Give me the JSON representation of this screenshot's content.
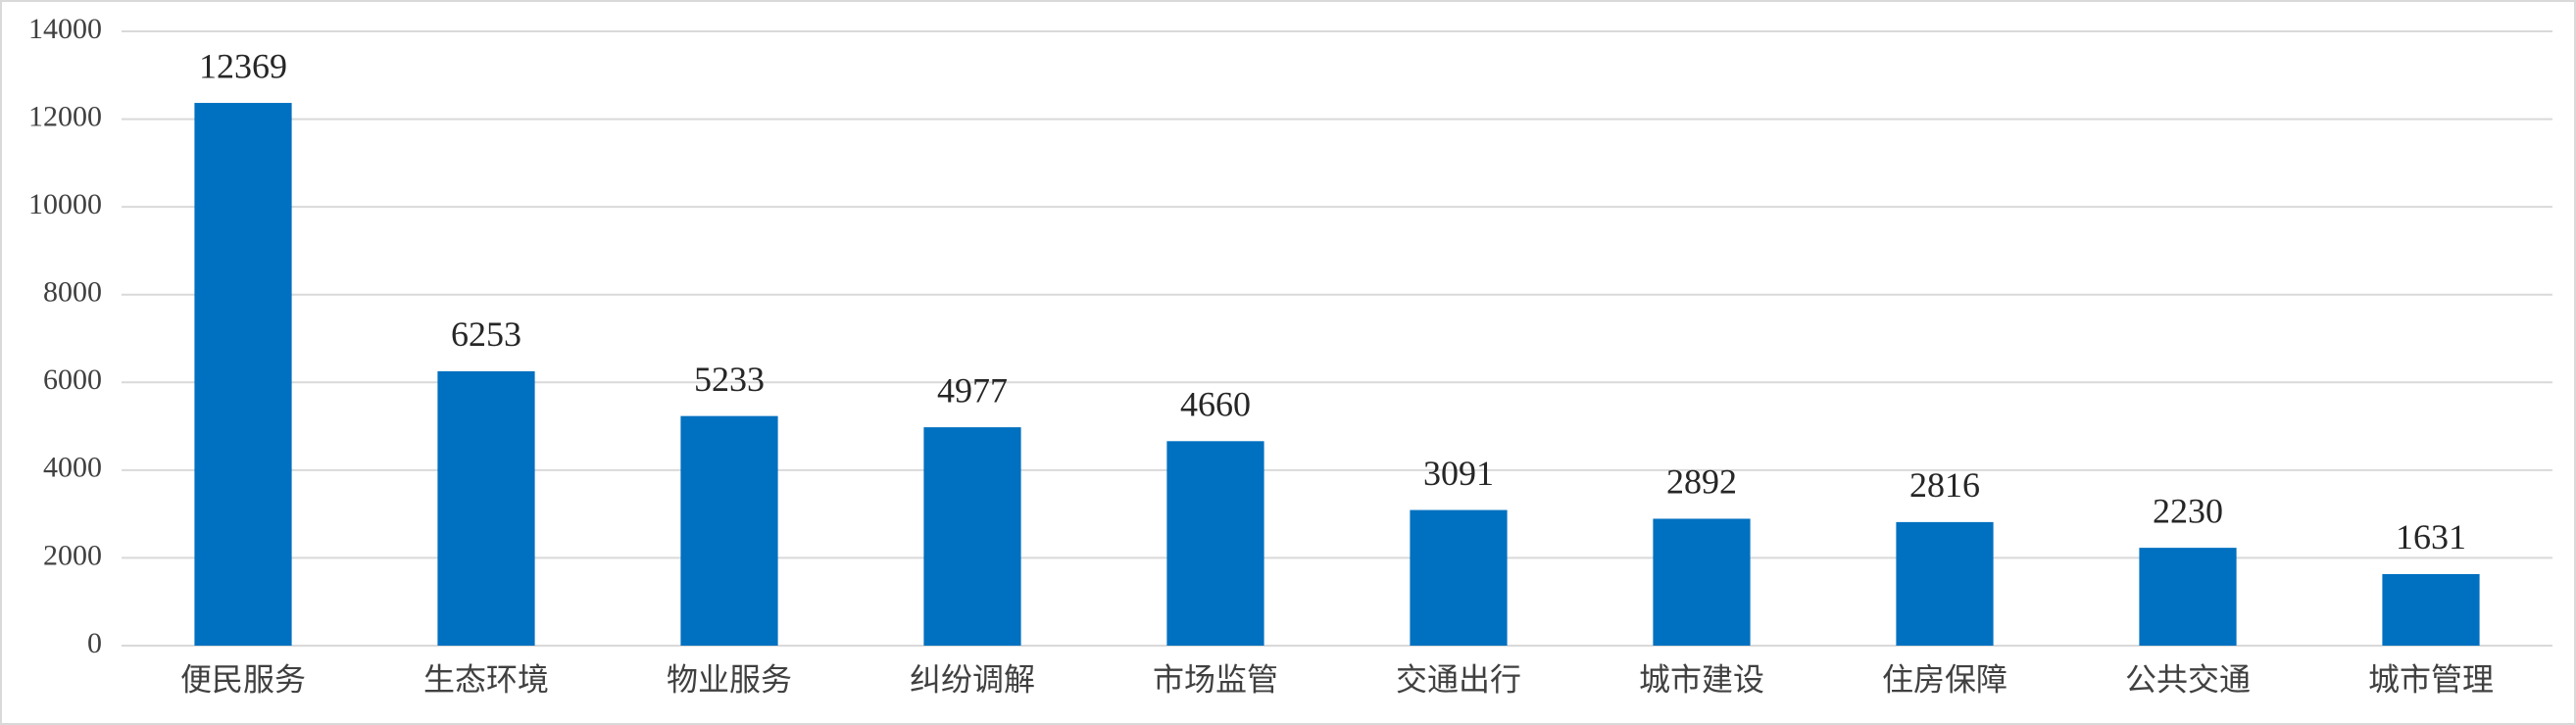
{
  "chart_data": {
    "type": "bar",
    "categories": [
      "便民服务",
      "生态环境",
      "物业服务",
      "纠纷调解",
      "市场监管",
      "交通出行",
      "城市建设",
      "住房保障",
      "公共交通",
      "城市管理"
    ],
    "values": [
      12369,
      6253,
      5233,
      4977,
      4660,
      3091,
      2892,
      2816,
      2230,
      1631
    ],
    "color": "#0070c0",
    "ylim": [
      0,
      14000
    ],
    "yticks": [
      0,
      2000,
      4000,
      6000,
      8000,
      10000,
      12000,
      14000
    ],
    "grid": true
  }
}
